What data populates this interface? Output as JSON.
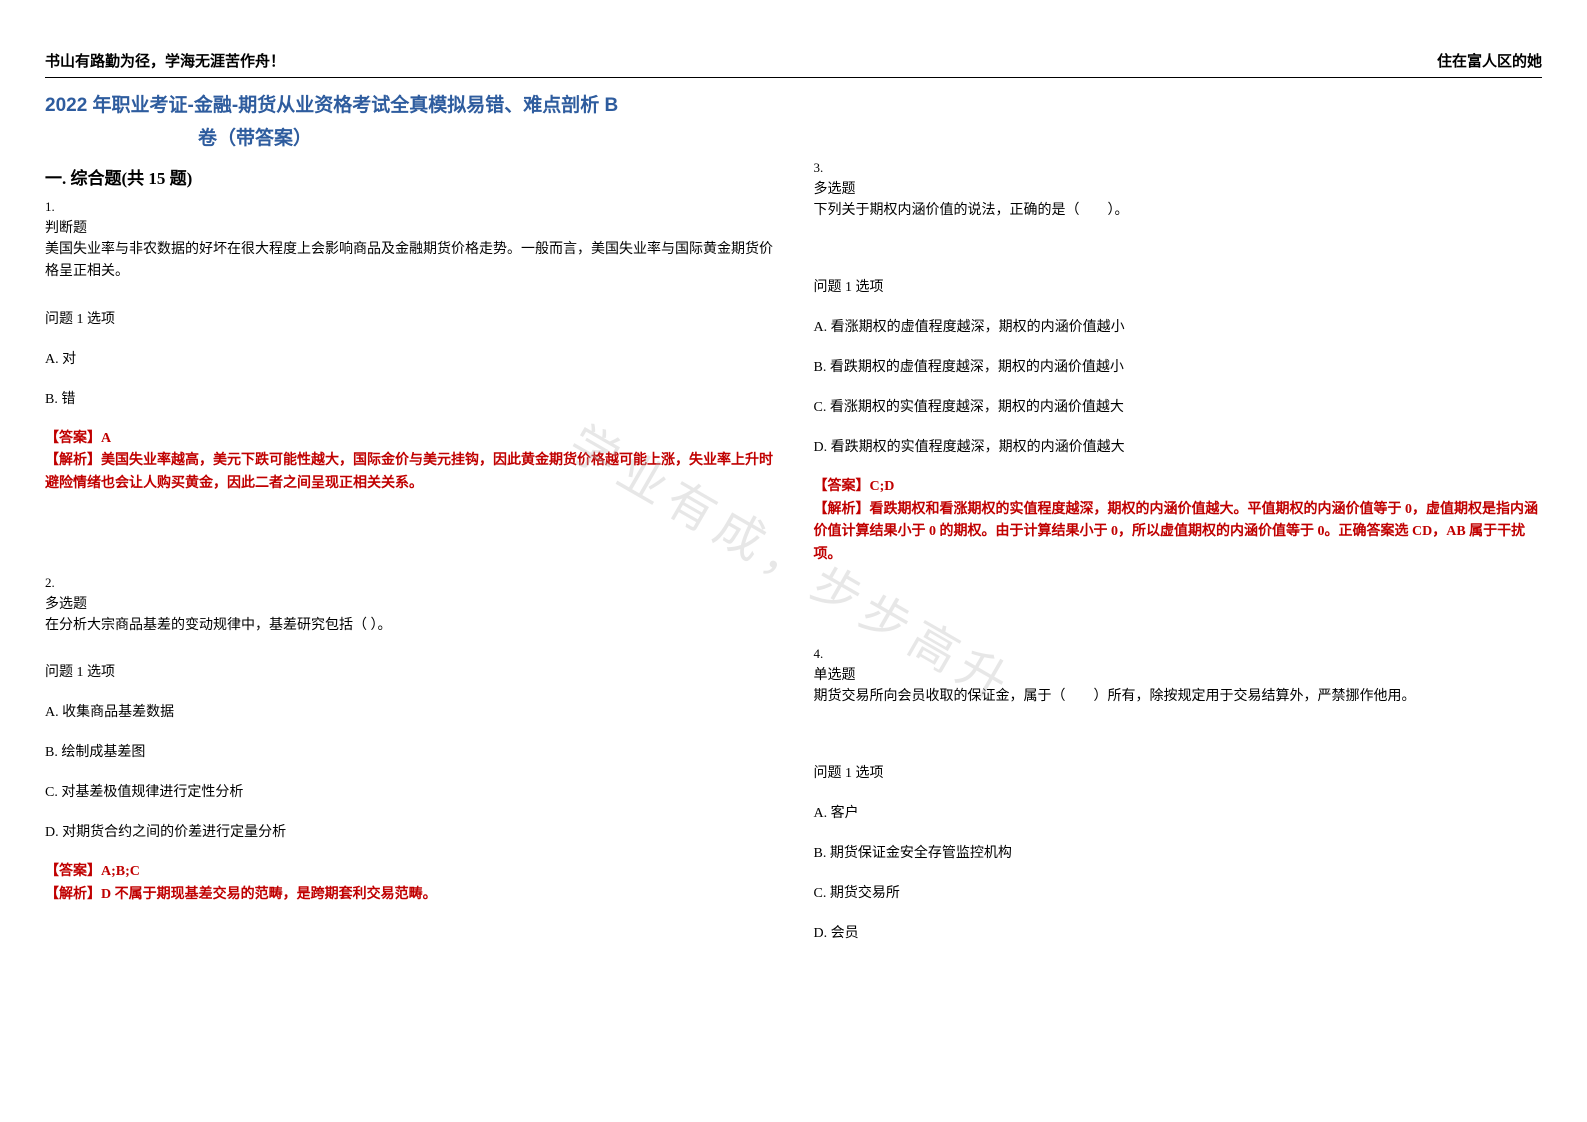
{
  "header": {
    "left": "书山有路勤为径，学海无涯苦作舟！",
    "right": "住在富人区的她"
  },
  "title": "2022 年职业考证-金融-期货从业资格考试全真模拟易错、难点剖析 B",
  "subtitle": "卷（带答案）",
  "section_header": "一. 综合题(共 15 题)",
  "watermark": "学业有成，步步高升",
  "colors": {
    "title_color": "#2e5c9e",
    "answer_color": "#c00000",
    "text_color": "#000000",
    "background": "#ffffff",
    "watermark_color": "#bbbbbb"
  },
  "typography": {
    "title_fontsize": 19,
    "section_fontsize": 17,
    "body_fontsize": 14,
    "qnum_fontsize": 13
  },
  "left_column": {
    "q1": {
      "num": "1.",
      "type": "判断题",
      "text": "美国失业率与非农数据的好坏在很大程度上会影响商品及金融期货价格走势。一般而言，美国失业率与国际黄金期货价格呈正相关。",
      "option_label": "问题 1 选项",
      "options": [
        "A. 对",
        "B. 错"
      ],
      "answer_label": "【答案】A",
      "analysis": "【解析】美国失业率越高，美元下跌可能性越大，国际金价与美元挂钩，因此黄金期货价格越可能上涨，失业率上升时避险情绪也会让人购买黄金，因此二者之间呈现正相关关系。"
    },
    "q2": {
      "num": "2.",
      "type": "多选题",
      "text": "在分析大宗商品基差的变动规律中，基差研究包括（ ）。",
      "option_label": "问题 1 选项",
      "options": [
        "A. 收集商品基差数据",
        "B. 绘制成基差图",
        "C. 对基差极值规律进行定性分析",
        "D. 对期货合约之间的价差进行定量分析"
      ],
      "answer_label": "【答案】A;B;C",
      "analysis": "【解析】D 不属于期现基差交易的范畴，是跨期套利交易范畴。"
    }
  },
  "right_column": {
    "q3": {
      "num": "3.",
      "type": "多选题",
      "text": "下列关于期权内涵价值的说法，正确的是（　　）。",
      "option_label": "问题 1 选项",
      "options": [
        "A. 看涨期权的虚值程度越深，期权的内涵价值越小",
        "B. 看跌期权的虚值程度越深，期权的内涵价值越小",
        "C. 看涨期权的实值程度越深，期权的内涵价值越大",
        "D. 看跌期权的实值程度越深，期权的内涵价值越大"
      ],
      "answer_label": "【答案】C;D",
      "analysis": "【解析】看跌期权和看涨期权的实值程度越深，期权的内涵价值越大。平值期权的内涵价值等于 0，虚值期权是指内涵价值计算结果小于 0 的期权。由于计算结果小于 0，所以虚值期权的内涵价值等于 0。正确答案选 CD，AB 属于干扰项。"
    },
    "q4": {
      "num": "4.",
      "type": "单选题",
      "text": "期货交易所向会员收取的保证金，属于（　　）所有，除按规定用于交易结算外，严禁挪作他用。",
      "option_label": "问题 1 选项",
      "options": [
        "A. 客户",
        "B. 期货保证金安全存管监控机构",
        "C. 期货交易所",
        "D. 会员"
      ]
    }
  }
}
